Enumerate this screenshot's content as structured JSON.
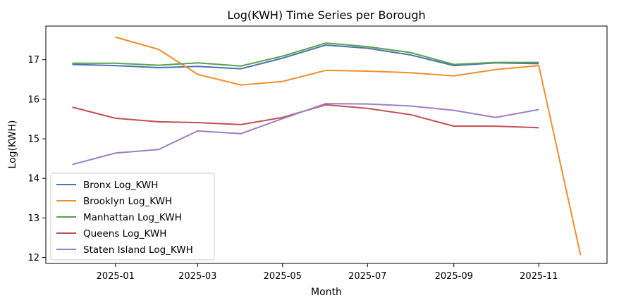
{
  "chart_data": {
    "type": "line",
    "title": "Log(KWH) Time Series per Borough",
    "xlabel": "Month",
    "ylabel": "Log(KWH)",
    "xlim": [
      "2024-11-12",
      "2025-12-20"
    ],
    "ylim": [
      11.85,
      17.85
    ],
    "x_ticks": [
      "2025-01",
      "2025-03",
      "2025-05",
      "2025-07",
      "2025-09",
      "2025-11"
    ],
    "y_ticks": [
      12,
      13,
      14,
      15,
      16,
      17
    ],
    "grid": false,
    "legend_position": "lower-left",
    "series": [
      {
        "name": "Bronx Log_KWH",
        "color": "#4c72b0",
        "points": [
          {
            "x": "2024-12-01",
            "y": 16.88
          },
          {
            "x": "2025-01-01",
            "y": 16.85
          },
          {
            "x": "2025-02-01",
            "y": 16.8
          },
          {
            "x": "2025-03-01",
            "y": 16.83
          },
          {
            "x": "2025-04-01",
            "y": 16.77
          },
          {
            "x": "2025-05-01",
            "y": 17.04
          },
          {
            "x": "2025-06-01",
            "y": 17.37
          },
          {
            "x": "2025-07-01",
            "y": 17.29
          },
          {
            "x": "2025-08-01",
            "y": 17.12
          },
          {
            "x": "2025-09-01",
            "y": 16.85
          },
          {
            "x": "2025-10-01",
            "y": 16.92
          },
          {
            "x": "2025-11-01",
            "y": 16.9
          }
        ]
      },
      {
        "name": "Brooklyn Log_KWH",
        "color": "#f28e2b",
        "points": [
          {
            "x": "2025-01-01",
            "y": 17.57
          },
          {
            "x": "2025-02-01",
            "y": 17.26
          },
          {
            "x": "2025-03-01",
            "y": 16.63
          },
          {
            "x": "2025-04-01",
            "y": 16.36
          },
          {
            "x": "2025-05-01",
            "y": 16.45
          },
          {
            "x": "2025-06-01",
            "y": 16.73
          },
          {
            "x": "2025-07-01",
            "y": 16.71
          },
          {
            "x": "2025-08-01",
            "y": 16.67
          },
          {
            "x": "2025-09-01",
            "y": 16.59
          },
          {
            "x": "2025-10-01",
            "y": 16.75
          },
          {
            "x": "2025-11-01",
            "y": 16.85
          },
          {
            "x": "2025-12-01",
            "y": 12.06
          }
        ]
      },
      {
        "name": "Manhattan Log_KWH",
        "color": "#59a14f",
        "points": [
          {
            "x": "2024-12-01",
            "y": 16.91
          },
          {
            "x": "2025-01-01",
            "y": 16.91
          },
          {
            "x": "2025-02-01",
            "y": 16.86
          },
          {
            "x": "2025-03-01",
            "y": 16.92
          },
          {
            "x": "2025-04-01",
            "y": 16.84
          },
          {
            "x": "2025-05-01",
            "y": 17.09
          },
          {
            "x": "2025-06-01",
            "y": 17.42
          },
          {
            "x": "2025-07-01",
            "y": 17.33
          },
          {
            "x": "2025-08-01",
            "y": 17.18
          },
          {
            "x": "2025-09-01",
            "y": 16.88
          },
          {
            "x": "2025-10-01",
            "y": 16.93
          },
          {
            "x": "2025-11-01",
            "y": 16.93
          }
        ]
      },
      {
        "name": "Queens Log_KWH",
        "color": "#c44e52",
        "points": [
          {
            "x": "2024-12-01",
            "y": 15.8
          },
          {
            "x": "2025-01-01",
            "y": 15.52
          },
          {
            "x": "2025-02-01",
            "y": 15.43
          },
          {
            "x": "2025-03-01",
            "y": 15.41
          },
          {
            "x": "2025-04-01",
            "y": 15.36
          },
          {
            "x": "2025-05-01",
            "y": 15.54
          },
          {
            "x": "2025-06-01",
            "y": 15.86
          },
          {
            "x": "2025-07-01",
            "y": 15.77
          },
          {
            "x": "2025-08-01",
            "y": 15.61
          },
          {
            "x": "2025-09-01",
            "y": 15.32
          },
          {
            "x": "2025-10-01",
            "y": 15.32
          },
          {
            "x": "2025-11-01",
            "y": 15.28
          }
        ]
      },
      {
        "name": "Staten Island Log_KWH",
        "color": "#9b7ec8",
        "points": [
          {
            "x": "2024-12-01",
            "y": 14.35
          },
          {
            "x": "2025-01-01",
            "y": 14.64
          },
          {
            "x": "2025-02-01",
            "y": 14.73
          },
          {
            "x": "2025-03-01",
            "y": 15.2
          },
          {
            "x": "2025-04-01",
            "y": 15.13
          },
          {
            "x": "2025-05-01",
            "y": 15.51
          },
          {
            "x": "2025-06-01",
            "y": 15.89
          },
          {
            "x": "2025-07-01",
            "y": 15.88
          },
          {
            "x": "2025-08-01",
            "y": 15.83
          },
          {
            "x": "2025-09-01",
            "y": 15.72
          },
          {
            "x": "2025-10-01",
            "y": 15.54
          },
          {
            "x": "2025-11-01",
            "y": 15.74
          }
        ]
      }
    ]
  }
}
